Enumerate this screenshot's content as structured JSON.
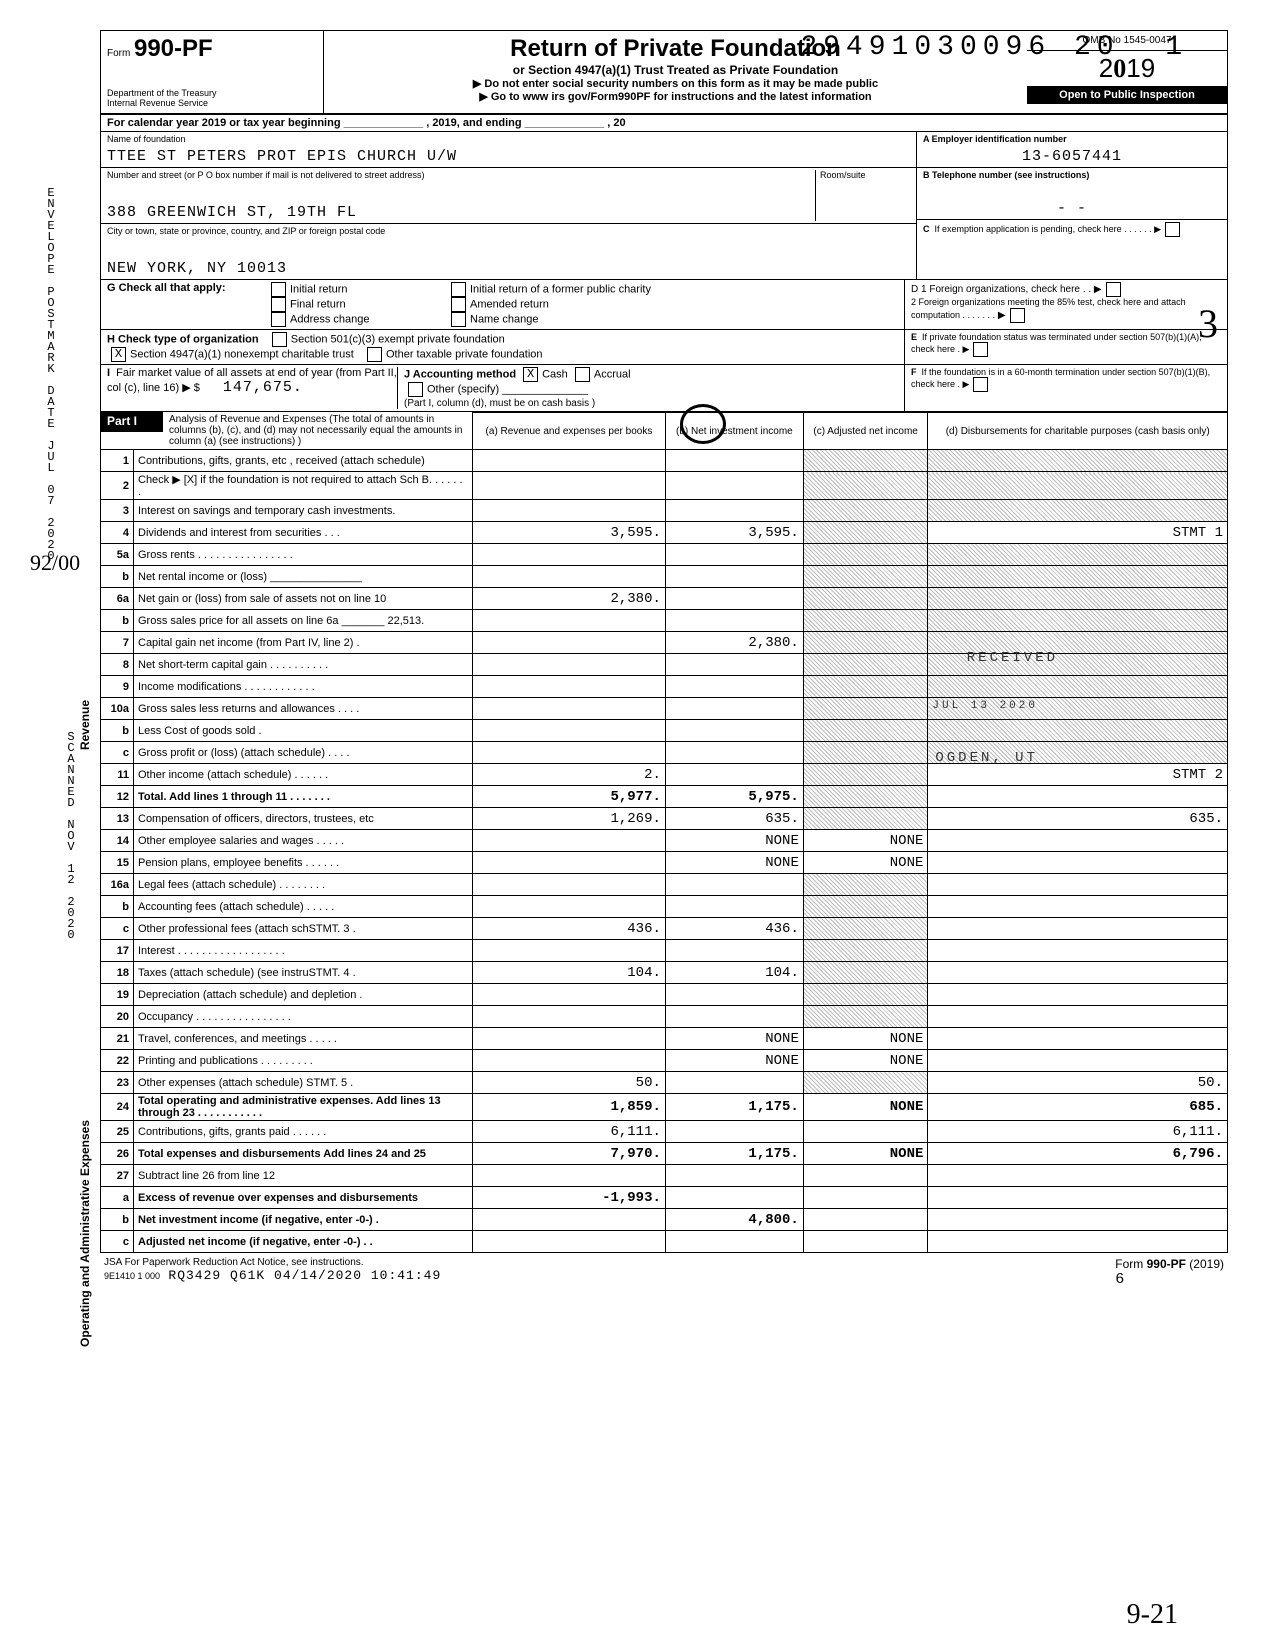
{
  "scan_code": "29491030096 20",
  "scan_code_suffix": "1",
  "form_number": "990-PF",
  "form_prefix": "Form",
  "title": "Return of Private Foundation",
  "subtitle": "or Section 4947(a)(1) Trust Treated as Private Foundation",
  "instr1": "▶ Do not enter social security numbers on this form as it may be made public",
  "instr2": "▶ Go to www irs gov/Form990PF for instructions and the latest information",
  "dept1": "Department of the Treasury",
  "dept2": "Internal Revenue Service",
  "omb": "OMB No 1545-0047",
  "year_prefix": "2",
  "year_em": "0",
  "year_mid": "19",
  "open": "Open to Public Inspection",
  "cal_left": "For calendar year 2019 or tax year beginning",
  "cal_mid": ", 2019, and ending",
  "cal_right": ", 20",
  "name_label": "Name of foundation",
  "name_val": "TTEE ST PETERS PROT EPIS CHURCH U/W",
  "ein_label": "A   Employer identification number",
  "ein_val": "13-6057441",
  "addr_label": "Number and street (or P O  box number if mail is not delivered to street address)",
  "room_label": "Room/suite",
  "addr_val": "388 GREENWICH ST, 19TH FL",
  "tel_label": "B   Telephone number (see instructions)",
  "tel_val": "-    -",
  "city_label": "City or town, state or province, country, and ZIP or foreign postal code",
  "city_val": "NEW YORK, NY 10013",
  "c_label": "C   If exemption application is pending, check here",
  "g_label": "G  Check all that apply:",
  "g_opts": [
    "Initial return",
    "Final return",
    "Address change",
    "Initial return of a former public charity",
    "Amended return",
    "Name change"
  ],
  "d_label": "D  1  Foreign organizations, check here . .",
  "d2_label": "2  Foreign organizations meeting the 85% test, check here and attach computation  . . . . . . .",
  "h_label": "H  Check type of organization",
  "h_501": "Section 501(c)(3) exempt private foundation",
  "h_4947": "Section 4947(a)(1) nonexempt charitable trust",
  "h_other": "Other taxable private foundation",
  "e_label": "E  If private foundation status was terminated under section 507(b)(1)(A), check here  .",
  "i_label": "I   Fair market value of all assets at end of year (from Part II, col (c), line 16) ▶ $",
  "i_val": "147,675.",
  "j_label": "J  Accounting method",
  "j_cash": "Cash",
  "j_accrual": "Accrual",
  "j_other": "Other (specify)",
  "f_label": "F  If the foundation is in a 60-month termination under section 507(b)(1)(B), check here  .",
  "part1_note": "(Part I, column (d), must be on cash basis )",
  "part1": "Part I",
  "part1_title": "Analysis of Revenue and Expenses (The total of amounts in columns (b), (c), and (d) may not necessarily equal the amounts in column (a) (see instructions) )",
  "col_a": "(a) Revenue and expenses per books",
  "col_b": "(b) Net investment income",
  "col_c": "(c) Adjusted net income",
  "col_d": "(d) Disbursements for charitable purposes (cash basis only)",
  "rows": [
    {
      "n": "1",
      "d": "Contributions, gifts, grants, etc , received (attach schedule)"
    },
    {
      "n": "2",
      "d": "Check ▶ [X] if the foundation is not required to attach Sch B. . . . . . ."
    },
    {
      "n": "3",
      "d": "Interest on savings and temporary cash investments."
    },
    {
      "n": "4",
      "d": "Dividends and interest from securities . . .",
      "a": "3,595.",
      "b": "3,595.",
      "dV": "STMT 1"
    },
    {
      "n": "5a",
      "d": "Gross rents . . . . . . . . . . . . . . . ."
    },
    {
      "n": "b",
      "d": "Net rental income or (loss) _______________"
    },
    {
      "n": "6a",
      "d": "Net gain or (loss) from sale of assets not on line 10",
      "a": "2,380."
    },
    {
      "n": "b",
      "d": "Gross sales price for all assets on line 6a _______ 22,513."
    },
    {
      "n": "7",
      "d": "Capital gain net income (from Part IV, line 2) .",
      "b": "2,380."
    },
    {
      "n": "8",
      "d": "Net short-term capital gain . . . . . . . . . ."
    },
    {
      "n": "9",
      "d": "Income modifications . . . . . . . . . . . ."
    },
    {
      "n": "10a",
      "d": "Gross sales less returns and allowances  . . . ."
    },
    {
      "n": "b",
      "d": "Less Cost of goods sold  ."
    },
    {
      "n": "c",
      "d": "Gross profit or (loss) (attach schedule) . . . ."
    },
    {
      "n": "11",
      "d": "Other income (attach schedule) . . . . . .",
      "a": "2.",
      "dV": "STMT 2"
    },
    {
      "n": "12",
      "d": "Total. Add lines 1 through 11 . . . . . . .",
      "a": "5,977.",
      "b": "5,975.",
      "bold": true
    },
    {
      "n": "13",
      "d": "Compensation of officers, directors, trustees, etc",
      "a": "1,269.",
      "b": "635.",
      "dV": "635."
    },
    {
      "n": "14",
      "d": "Other employee salaries and wages . . . . .",
      "b": "NONE",
      "c": "NONE"
    },
    {
      "n": "15",
      "d": "Pension plans, employee benefits . . . . . .",
      "b": "NONE",
      "c": "NONE"
    },
    {
      "n": "16a",
      "d": "Legal fees (attach schedule) . . . . . . . ."
    },
    {
      "n": "b",
      "d": "Accounting fees (attach schedule) . . . . ."
    },
    {
      "n": "c",
      "d": "Other professional fees (attach schSTMT. 3 .",
      "a": "436.",
      "b": "436."
    },
    {
      "n": "17",
      "d": "Interest . . . . . . . . . . . . . . . . . ."
    },
    {
      "n": "18",
      "d": "Taxes (attach schedule) (see instruSTMT. 4 .",
      "a": "104.",
      "b": "104."
    },
    {
      "n": "19",
      "d": "Depreciation (attach schedule) and depletion ."
    },
    {
      "n": "20",
      "d": "Occupancy . . . . . . . . . . . . . . . ."
    },
    {
      "n": "21",
      "d": "Travel, conferences, and meetings . . . . .",
      "b": "NONE",
      "c": "NONE"
    },
    {
      "n": "22",
      "d": "Printing and publications . . . . . . . . .",
      "b": "NONE",
      "c": "NONE"
    },
    {
      "n": "23",
      "d": "Other expenses (attach schedule) STMT. 5 .",
      "a": "50.",
      "dV": "50."
    },
    {
      "n": "24",
      "d": "Total operating and administrative expenses. Add lines 13 through 23 . . . . . . . . . . .",
      "a": "1,859.",
      "b": "1,175.",
      "c": "NONE",
      "dV": "685.",
      "bold": true
    },
    {
      "n": "25",
      "d": "Contributions, gifts, grants paid . . . . . .",
      "a": "6,111.",
      "dV": "6,111."
    },
    {
      "n": "26",
      "d": "Total expenses and disbursements  Add lines 24 and 25",
      "a": "7,970.",
      "b": "1,175.",
      "c": "NONE",
      "dV": "6,796.",
      "bold": true
    },
    {
      "n": "27",
      "d": "Subtract line 26 from line 12"
    },
    {
      "n": "a",
      "d": "Excess of revenue over expenses and disbursements",
      "a": "-1,993.",
      "bold": true
    },
    {
      "n": "b",
      "d": "Net investment income (if negative, enter -0-) .",
      "b": "4,800.",
      "bold": true
    },
    {
      "n": "c",
      "d": "Adjusted net income (if negative, enter -0-) . .",
      "bold": true
    }
  ],
  "side_revenue": "Revenue",
  "side_expenses": "Operating and Administrative Expenses",
  "scanned_label": "SCANNED NOV 12 2020",
  "received": "RECEIVED",
  "received_date": "JUL 13 2020",
  "received_place": "OGDEN, UT",
  "footer_left": "JSA For Paperwork Reduction Act Notice, see instructions.",
  "footer_jsa": "9E1410 1 000",
  "footer_stamp": "RQ3429 Q61K 04/14/2020 10:41:49",
  "footer_form": "Form 990-PF (2019)",
  "footer_page": "6",
  "handwrite_9_21": "9-21",
  "handwrite_92": "92/00",
  "handwrite_3": "3",
  "postmark": "ENVELOPE  POSTMARK DATE  JUL 07 2020"
}
